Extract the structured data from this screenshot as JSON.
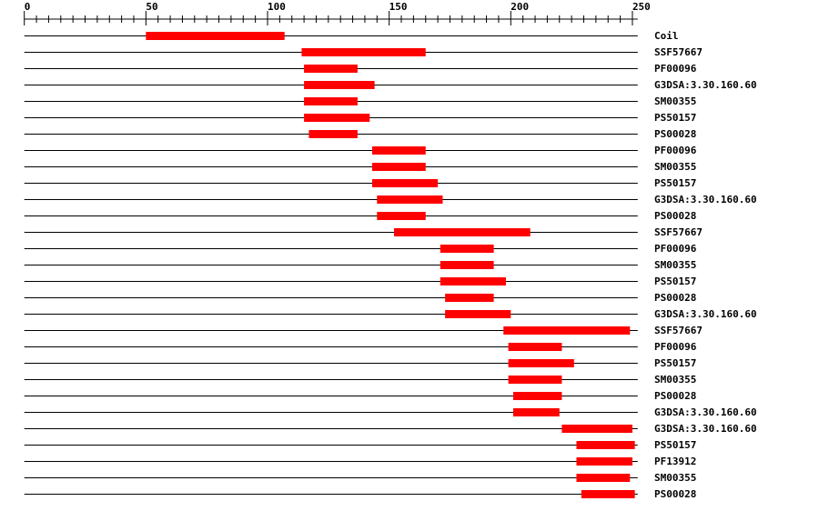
{
  "axis": {
    "min": 0,
    "max": 250,
    "major_step": 50,
    "minor_step": 5,
    "labels": [
      "0",
      "50",
      "100",
      "150",
      "200",
      "250"
    ]
  },
  "sequence_length": 252,
  "colors": {
    "feature": "#ff0000",
    "line": "#000000"
  },
  "tracks": [
    {
      "label": "Coil",
      "start": 50,
      "end": 107
    },
    {
      "label": "SSF57667",
      "start": 114,
      "end": 165
    },
    {
      "label": "PF00096",
      "start": 115,
      "end": 137
    },
    {
      "label": "G3DSA:3.30.160.60",
      "start": 115,
      "end": 144
    },
    {
      "label": "SM00355",
      "start": 115,
      "end": 137
    },
    {
      "label": "PS50157",
      "start": 115,
      "end": 142
    },
    {
      "label": "PS00028",
      "start": 117,
      "end": 137
    },
    {
      "label": "PF00096",
      "start": 143,
      "end": 165
    },
    {
      "label": "SM00355",
      "start": 143,
      "end": 165
    },
    {
      "label": "PS50157",
      "start": 143,
      "end": 170
    },
    {
      "label": "G3DSA:3.30.160.60",
      "start": 145,
      "end": 172
    },
    {
      "label": "PS00028",
      "start": 145,
      "end": 165
    },
    {
      "label": "SSF57667",
      "start": 152,
      "end": 208
    },
    {
      "label": "PF00096",
      "start": 171,
      "end": 193
    },
    {
      "label": "SM00355",
      "start": 171,
      "end": 193
    },
    {
      "label": "PS50157",
      "start": 171,
      "end": 198
    },
    {
      "label": "PS00028",
      "start": 173,
      "end": 193
    },
    {
      "label": "G3DSA:3.30.160.60",
      "start": 173,
      "end": 200
    },
    {
      "label": "SSF57667",
      "start": 197,
      "end": 249
    },
    {
      "label": "PF00096",
      "start": 199,
      "end": 221
    },
    {
      "label": "PS50157",
      "start": 199,
      "end": 226
    },
    {
      "label": "SM00355",
      "start": 199,
      "end": 221
    },
    {
      "label": "PS00028",
      "start": 201,
      "end": 221
    },
    {
      "label": "G3DSA:3.30.160.60",
      "start": 201,
      "end": 220
    },
    {
      "label": "G3DSA:3.30.160.60",
      "start": 221,
      "end": 250
    },
    {
      "label": "PS50157",
      "start": 227,
      "end": 251
    },
    {
      "label": "PF13912",
      "start": 227,
      "end": 250
    },
    {
      "label": "SM00355",
      "start": 227,
      "end": 249
    },
    {
      "label": "PS00028",
      "start": 229,
      "end": 251
    }
  ]
}
